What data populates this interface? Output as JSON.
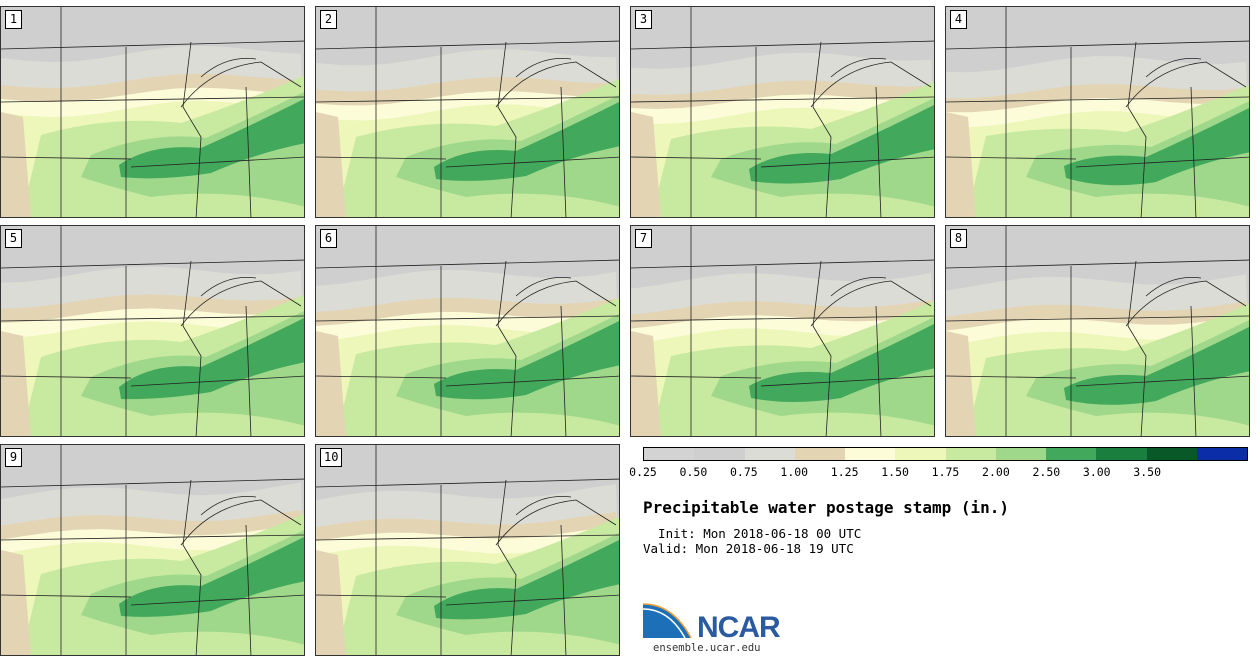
{
  "panels": [
    {
      "label": "1"
    },
    {
      "label": "2"
    },
    {
      "label": "3"
    },
    {
      "label": "4"
    },
    {
      "label": "5"
    },
    {
      "label": "6"
    },
    {
      "label": "7"
    },
    {
      "label": "8"
    },
    {
      "label": "9"
    },
    {
      "label": "10"
    }
  ],
  "colorbar": {
    "ticks": [
      "0.25",
      "0.50",
      "0.75",
      "1.00",
      "1.25",
      "1.50",
      "1.75",
      "2.00",
      "2.50",
      "3.00",
      "3.50"
    ],
    "colors": [
      "#d3d3d3",
      "#cfcfcf",
      "#dcdcd6",
      "#e3d4b3",
      "#fcfcd8",
      "#ecf7b9",
      "#c8e9a0",
      "#9fd88a",
      "#41a85c",
      "#1a7f3e",
      "#085828",
      "#0b2ea8"
    ]
  },
  "title": "Precipitable water postage stamp (in.)",
  "init": "  Init: Mon 2018-06-18 00 UTC",
  "valid": "Valid: Mon 2018-06-18 19 UTC",
  "logo": {
    "text": "NCAR",
    "site": "ensemble.ucar.edu"
  }
}
